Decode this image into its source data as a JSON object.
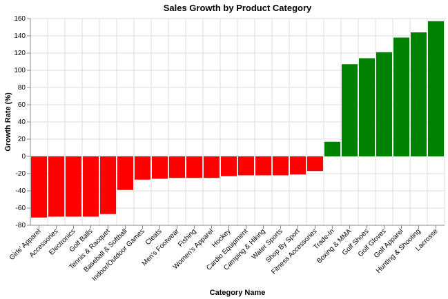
{
  "chart_data": {
    "type": "bar",
    "title": "Sales Growth by Product Category",
    "xlabel": "Category Name",
    "ylabel": "Growth Rate (%)",
    "ylim": [
      -80,
      160
    ],
    "yticks": [
      -80,
      -60,
      -40,
      -20,
      0,
      20,
      40,
      60,
      80,
      100,
      120,
      140,
      160
    ],
    "grid": true,
    "positive_color": "#008000",
    "negative_color": "#ff0000",
    "categories": [
      "Girls' Apparel",
      "Accessories",
      "Electronics",
      "Golf Balls",
      "Tennis & Racquet",
      "Baseball & Softball",
      "Indoor/Outdoor Games",
      "Cleats",
      "Men's Footwear",
      "Fishing",
      "Women's Apparel",
      "Hockey",
      "Cardio Equipment",
      "Camping & Hiking",
      "Water Sports",
      "Shop By Sport",
      "Fitness Accessories",
      "Trade-In",
      "Boxing & MMA",
      "Golf Shoes",
      "Golf Gloves",
      "Golf Apparel",
      "Hunting & Shooting",
      "Lacrosse"
    ],
    "values": [
      -71,
      -70,
      -70,
      -70,
      -67,
      -39,
      -27,
      -26,
      -25,
      -25,
      -25,
      -23,
      -22,
      -22,
      -22,
      -21,
      -17,
      17,
      107,
      114,
      121,
      138,
      144,
      157
    ]
  }
}
